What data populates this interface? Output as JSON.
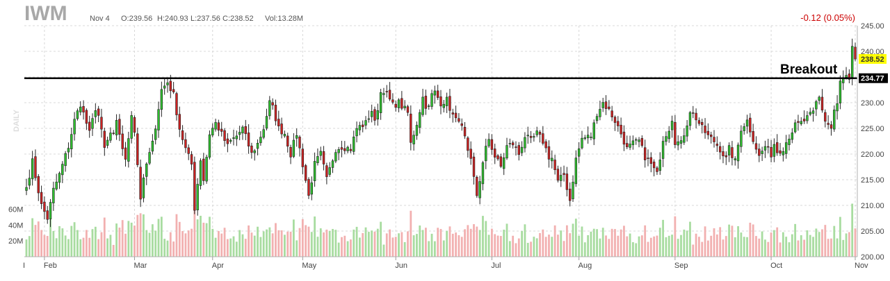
{
  "header": {
    "ticker": "IWM",
    "date": "Nov 4",
    "open": "O:239.56",
    "high": "H:240.93",
    "low": "L:237.56",
    "close": "C:238.52",
    "volume": "Vol:13.28M",
    "change": "-0.12 (0.05%)",
    "timeframe": "DAILY"
  },
  "chart_data": {
    "type": "candlestick",
    "y_axis": {
      "ylim": [
        200,
        245
      ],
      "ticks": [
        "245.00",
        "240.00",
        "235.00",
        "230.00",
        "225.00",
        "220.00",
        "215.00",
        "210.00",
        "205.00",
        "200.00"
      ],
      "position": "right"
    },
    "volume_axis": {
      "ticks": [
        "60M",
        "40M",
        "20M"
      ],
      "vlim": [
        0,
        70
      ]
    },
    "x_axis": {
      "start_label": "I",
      "months": [
        "Feb",
        "Mar",
        "Apr",
        "May",
        "Jun",
        "Jul",
        "Aug",
        "Sep",
        "Oct",
        "Nov"
      ],
      "month_start_index": [
        6,
        36,
        62,
        92,
        123,
        155,
        184,
        216,
        248,
        276
      ]
    },
    "grid": true,
    "colors": {
      "up": "#2fbf2f",
      "down": "#cc2222",
      "vol_up": "#a8dca0",
      "vol_down": "#f2b0b0",
      "grid": "#d8d8d8"
    },
    "horizontal_line": {
      "value": 234.77,
      "label": "234.77",
      "color": "#000000"
    },
    "last_price": {
      "value": 238.52,
      "label": "238.52",
      "color": "#ffff00"
    },
    "annotation": {
      "text": "Breakout",
      "near_value": 234.77
    },
    "anchors": [
      [
        0,
        213.5
      ],
      [
        2,
        218.5
      ],
      [
        5,
        210
      ],
      [
        7,
        207.5
      ],
      [
        9,
        213
      ],
      [
        11,
        216
      ],
      [
        14,
        221.5
      ],
      [
        16,
        226.5
      ],
      [
        18,
        229.8
      ],
      [
        20,
        226
      ],
      [
        21,
        224
      ],
      [
        23,
        229
      ],
      [
        24,
        227.5
      ],
      [
        26,
        221
      ],
      [
        28,
        224
      ],
      [
        29,
        223.5
      ],
      [
        30,
        226
      ],
      [
        31,
        224
      ],
      [
        33,
        218.5
      ],
      [
        35,
        228
      ],
      [
        36,
        224.5
      ],
      [
        38,
        211.5
      ],
      [
        40,
        218
      ],
      [
        42,
        222
      ],
      [
        45,
        232.5
      ],
      [
        47,
        234
      ],
      [
        49,
        231.5
      ],
      [
        51,
        225
      ],
      [
        53,
        221
      ],
      [
        55,
        218
      ],
      [
        56,
        209.5
      ],
      [
        58,
        219
      ],
      [
        59,
        215
      ],
      [
        61,
        224
      ],
      [
        63,
        226
      ],
      [
        64,
        225
      ],
      [
        67,
        221.5
      ],
      [
        68,
        222.5
      ],
      [
        70,
        223.5
      ],
      [
        72,
        225
      ],
      [
        75,
        220
      ],
      [
        77,
        222
      ],
      [
        79,
        225
      ],
      [
        80,
        227.5
      ],
      [
        81,
        230
      ],
      [
        82,
        229
      ],
      [
        84,
        225
      ],
      [
        86,
        224
      ],
      [
        88,
        220
      ],
      [
        90,
        224
      ],
      [
        92,
        218
      ],
      [
        94,
        211.8
      ],
      [
        96,
        218
      ],
      [
        98,
        220
      ],
      [
        100,
        215
      ],
      [
        101,
        217
      ],
      [
        103,
        221
      ],
      [
        105,
        221.5
      ],
      [
        108,
        221
      ],
      [
        110,
        225
      ],
      [
        113,
        226
      ],
      [
        115,
        228.5
      ],
      [
        116,
        226
      ],
      [
        118,
        232
      ],
      [
        119,
        232.5
      ],
      [
        122,
        229.5
      ],
      [
        124,
        230
      ],
      [
        127,
        228
      ],
      [
        128,
        222
      ],
      [
        130,
        226
      ],
      [
        132,
        231
      ],
      [
        133,
        229.5
      ],
      [
        134,
        229
      ],
      [
        135,
        231.5
      ],
      [
        136,
        232
      ],
      [
        138,
        230
      ],
      [
        140,
        230.5
      ],
      [
        142,
        227.5
      ],
      [
        143,
        226.5
      ],
      [
        144,
        227
      ],
      [
        146,
        223
      ],
      [
        147,
        220
      ],
      [
        148,
        218.5
      ],
      [
        150,
        212
      ],
      [
        151,
        215
      ],
      [
        153,
        221
      ],
      [
        154,
        223
      ],
      [
        156,
        219.5
      ],
      [
        158,
        217.5
      ],
      [
        160,
        221.5
      ],
      [
        162,
        222
      ],
      [
        164,
        220
      ],
      [
        166,
        223.5
      ],
      [
        168,
        222.5
      ],
      [
        170,
        224
      ],
      [
        172,
        222.5
      ],
      [
        174,
        219.5
      ],
      [
        175,
        219.2
      ],
      [
        177,
        214.5
      ],
      [
        179,
        216
      ],
      [
        181,
        211
      ],
      [
        183,
        219
      ],
      [
        185,
        223
      ],
      [
        188,
        223.5
      ],
      [
        190,
        228
      ],
      [
        192,
        230
      ],
      [
        194,
        228.5
      ],
      [
        196,
        226.5
      ],
      [
        198,
        224
      ],
      [
        200,
        221
      ],
      [
        202,
        222
      ],
      [
        204,
        222.5
      ],
      [
        206,
        219.5
      ],
      [
        208,
        218
      ],
      [
        210,
        216
      ],
      [
        212,
        223
      ],
      [
        214,
        225
      ],
      [
        215,
        227
      ],
      [
        216,
        222.5
      ],
      [
        218,
        222
      ],
      [
        220,
        226
      ],
      [
        221,
        228.5
      ],
      [
        223,
        227
      ],
      [
        225,
        225
      ],
      [
        227,
        223.5
      ],
      [
        229,
        222.5
      ],
      [
        231,
        221
      ],
      [
        233,
        219
      ],
      [
        234,
        221
      ],
      [
        236,
        218.5
      ],
      [
        238,
        225
      ],
      [
        240,
        226.5
      ],
      [
        242,
        223
      ],
      [
        244,
        219.5
      ],
      [
        246,
        221.5
      ],
      [
        248,
        220
      ],
      [
        249,
        222
      ],
      [
        250,
        220.5
      ],
      [
        252,
        221.2
      ],
      [
        254,
        223.5
      ],
      [
        256,
        225.5
      ],
      [
        258,
        226
      ],
      [
        260,
        227
      ],
      [
        262,
        228
      ],
      [
        263,
        230
      ],
      [
        264,
        231
      ],
      [
        266,
        226.5
      ],
      [
        268,
        225
      ],
      [
        269,
        228.5
      ],
      [
        270,
        229.5
      ],
      [
        271,
        234
      ],
      [
        273,
        235
      ],
      [
        274,
        234
      ],
      [
        275,
        240.5
      ],
      [
        276,
        238.5
      ]
    ]
  }
}
